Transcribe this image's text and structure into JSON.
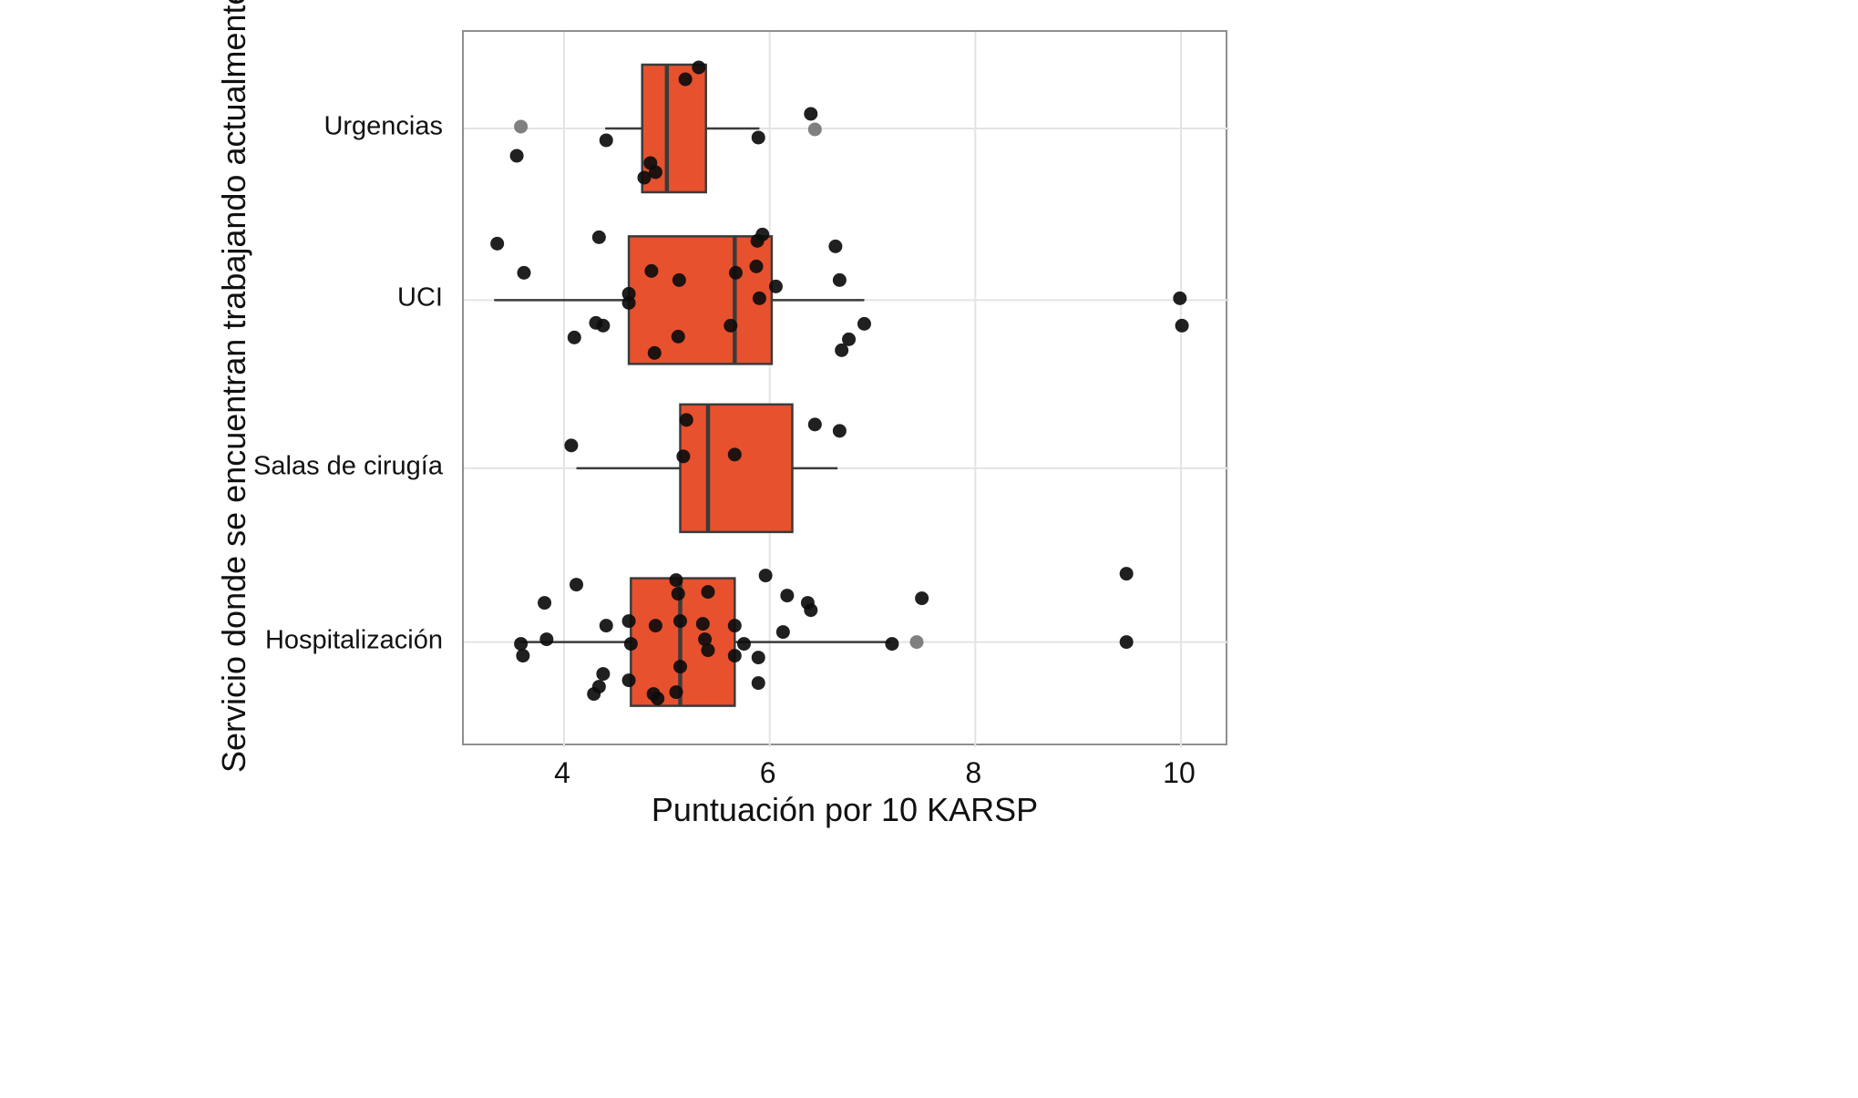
{
  "figure": {
    "background": "#ffffff",
    "frame_color": "#8f8f8f",
    "grid_color": "#e4e4e4",
    "box_fill": "#E8512D",
    "box_stroke": "#3b3b3b",
    "point_color": "#0d0d0d",
    "point_muted": "#757575"
  },
  "chart_data": {
    "type": "boxplot",
    "orientation": "horizontal",
    "title": "",
    "xlabel": "Puntuación por 10 KARSP",
    "ylabel": "Servicio donde se encuentran trabajando actualmente",
    "xlim": [
      3.025,
      10.47
    ],
    "xticks": [
      4,
      6,
      8,
      10
    ],
    "grid": true,
    "categories": [
      "Urgencias",
      "UCI",
      "Salas de cirugía",
      "Hospitalización"
    ],
    "boxes": [
      {
        "category": "Urgencias",
        "whisker_low": 4.4,
        "q1": 4.76,
        "median": 5.0,
        "q3": 5.38,
        "whisker_high": 5.9
      },
      {
        "category": "UCI",
        "whisker_low": 3.32,
        "q1": 4.63,
        "median": 5.66,
        "q3": 6.02,
        "whisker_high": 6.92
      },
      {
        "category": "Salas de cirugía",
        "whisker_low": 4.12,
        "q1": 5.13,
        "median": 5.4,
        "q3": 6.22,
        "whisker_high": 6.66
      },
      {
        "category": "Hospitalización",
        "whisker_low": 3.57,
        "q1": 4.65,
        "median": 5.13,
        "q3": 5.66,
        "whisker_high": 7.17
      }
    ],
    "points": [
      {
        "category": "Urgencias",
        "pts": [
          [
            5.18,
            -54
          ],
          [
            5.31,
            -67
          ],
          [
            6.4,
            -16
          ],
          [
            6.44,
            1,
            1
          ],
          [
            3.58,
            -2,
            1
          ],
          [
            3.54,
            30
          ],
          [
            4.41,
            13
          ],
          [
            5.89,
            10
          ],
          [
            4.84,
            38
          ],
          [
            4.89,
            48
          ],
          [
            4.78,
            54
          ]
        ]
      },
      {
        "category": "UCI",
        "pts": [
          [
            3.35,
            -62
          ],
          [
            3.61,
            -30
          ],
          [
            4.34,
            -69
          ],
          [
            4.1,
            41
          ],
          [
            4.31,
            25
          ],
          [
            4.38,
            28
          ],
          [
            4.63,
            -7
          ],
          [
            4.63,
            3
          ],
          [
            4.85,
            -32
          ],
          [
            4.88,
            58
          ],
          [
            5.12,
            -22
          ],
          [
            5.11,
            40
          ],
          [
            5.62,
            28
          ],
          [
            5.67,
            -30
          ],
          [
            5.88,
            -65
          ],
          [
            5.93,
            -72
          ],
          [
            5.87,
            -37
          ],
          [
            5.9,
            -2
          ],
          [
            6.06,
            -15
          ],
          [
            6.64,
            -59
          ],
          [
            6.68,
            -22
          ],
          [
            6.92,
            26
          ],
          [
            6.77,
            43
          ],
          [
            6.7,
            55
          ],
          [
            9.99,
            -2
          ],
          [
            10.01,
            28
          ]
        ]
      },
      {
        "category": "Salas de cirugía",
        "pts": [
          [
            4.07,
            -25
          ],
          [
            5.19,
            -53
          ],
          [
            5.16,
            -13
          ],
          [
            5.66,
            -15
          ],
          [
            6.44,
            -48
          ],
          [
            6.68,
            -41
          ]
        ]
      },
      {
        "category": "Hospitalización",
        "pts": [
          [
            4.12,
            -63
          ],
          [
            3.81,
            -43
          ],
          [
            5.96,
            -73
          ],
          [
            5.09,
            -68
          ],
          [
            5.11,
            -53
          ],
          [
            5.4,
            -55
          ],
          [
            6.17,
            -51
          ],
          [
            6.37,
            -43
          ],
          [
            6.4,
            -35
          ],
          [
            7.48,
            -48
          ],
          [
            9.47,
            -75
          ],
          [
            4.41,
            -18
          ],
          [
            4.63,
            -23
          ],
          [
            4.65,
            2
          ],
          [
            4.89,
            -18
          ],
          [
            5.13,
            -23
          ],
          [
            5.35,
            -20
          ],
          [
            5.37,
            -3
          ],
          [
            5.66,
            -18
          ],
          [
            5.75,
            2
          ],
          [
            6.13,
            -11
          ],
          [
            3.58,
            2
          ],
          [
            3.6,
            15
          ],
          [
            3.83,
            -3
          ],
          [
            5.4,
            9
          ],
          [
            5.66,
            15
          ],
          [
            5.89,
            17
          ],
          [
            7.19,
            2
          ],
          [
            7.43,
            0,
            1
          ],
          [
            9.47,
            0
          ],
          [
            4.38,
            35
          ],
          [
            4.34,
            49
          ],
          [
            4.63,
            42
          ],
          [
            4.87,
            57
          ],
          [
            4.91,
            62
          ],
          [
            5.09,
            55
          ],
          [
            5.13,
            27
          ],
          [
            5.89,
            45
          ],
          [
            4.29,
            57
          ]
        ]
      }
    ]
  }
}
